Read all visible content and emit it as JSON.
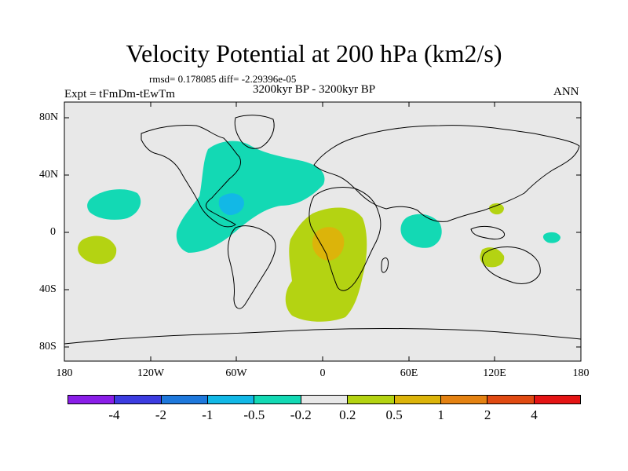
{
  "title": "Velocity Potential at 200 hPa (km2/s)",
  "stats": "rmsd= 0.178085 diff= -2.29396e-05",
  "experiment": "Expt = tFmDm-tEwTm",
  "period": "3200kyr BP - 3200kyr BP",
  "season": "ANN",
  "lat_labels": [
    "80N",
    "40N",
    "0",
    "40S",
    "80S"
  ],
  "lon_labels": [
    "180",
    "120W",
    "60W",
    "0",
    "60E",
    "120E",
    "180"
  ],
  "colorbar": {
    "colors": [
      "#8a1ee8",
      "#3c3ce0",
      "#1e78dc",
      "#12b8e6",
      "#13d9b4",
      "#e8e8e8",
      "#b4d312",
      "#dcb40a",
      "#e48212",
      "#e04a12",
      "#e41414"
    ],
    "labels": [
      "-4",
      "-2",
      "-1",
      "-0.5",
      "-0.2",
      "0.2",
      "0.5",
      "1",
      "2",
      "4"
    ]
  }
}
